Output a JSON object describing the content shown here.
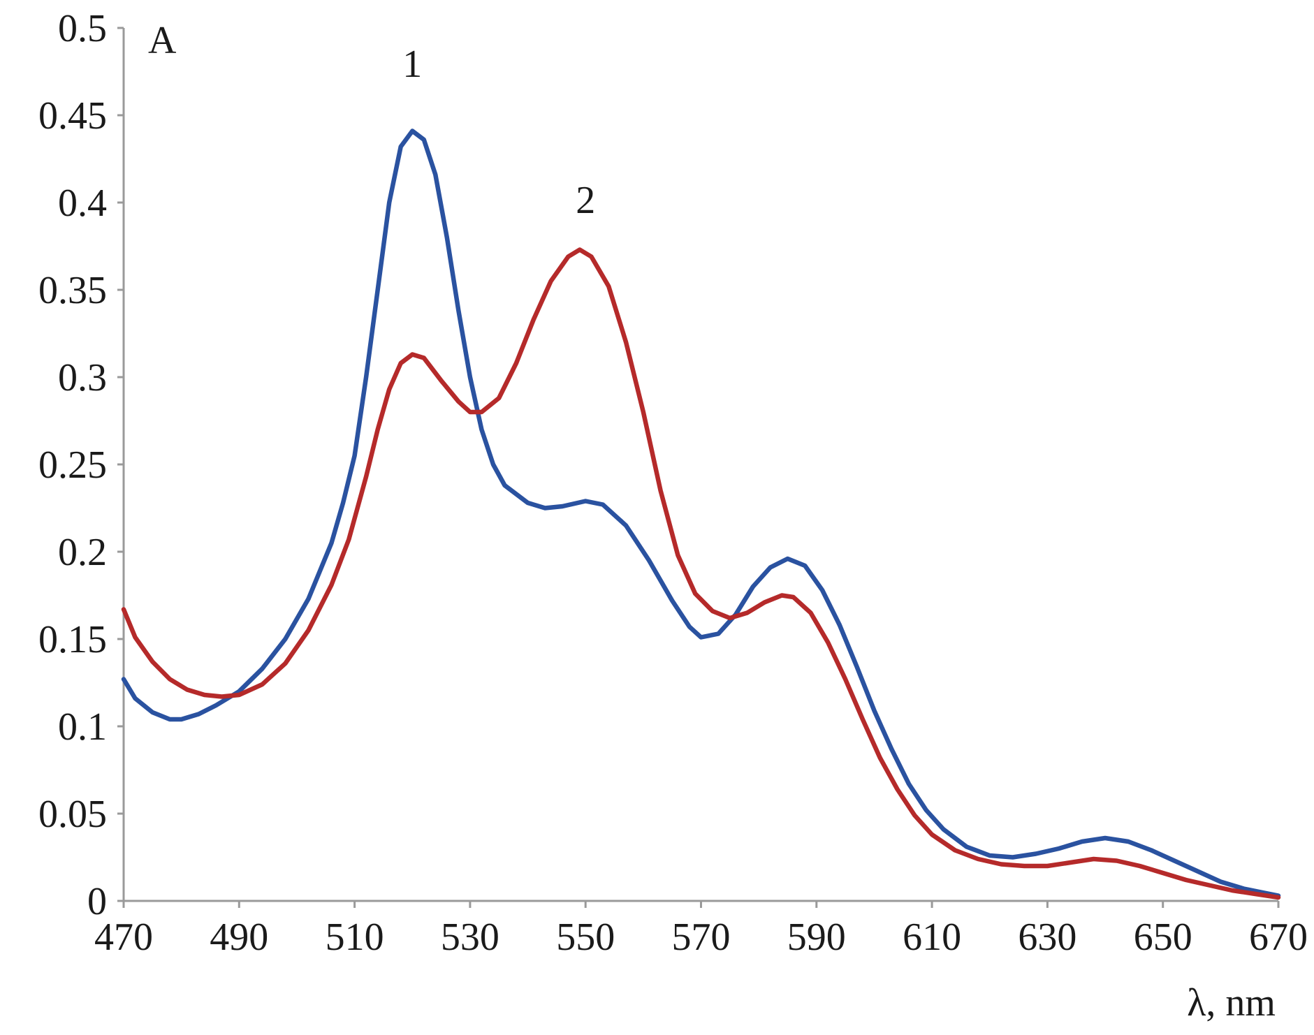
{
  "chart_data": {
    "type": "line",
    "ylabel": "A",
    "xlabel": "λ, nm",
    "xlim": [
      470,
      670
    ],
    "ylim": [
      0,
      0.5
    ],
    "x_ticks": [
      "470",
      "490",
      "510",
      "530",
      "550",
      "570",
      "590",
      "610",
      "630",
      "650",
      "670"
    ],
    "y_ticks": [
      "0",
      "0.05",
      "0.1",
      "0.15",
      "0.2",
      "0.25",
      "0.3",
      "0.35",
      "0.4",
      "0.45",
      "0.5"
    ],
    "grid": false,
    "legend": "none (series labelled directly on curves)",
    "series": [
      {
        "name": "1",
        "color": "#2a52a0",
        "label_at": {
          "x": 520,
          "y": 0.472
        },
        "points": [
          [
            470,
            0.127
          ],
          [
            472,
            0.116
          ],
          [
            475,
            0.108
          ],
          [
            478,
            0.104
          ],
          [
            480,
            0.104
          ],
          [
            483,
            0.107
          ],
          [
            486,
            0.112
          ],
          [
            490,
            0.12
          ],
          [
            494,
            0.133
          ],
          [
            498,
            0.15
          ],
          [
            502,
            0.173
          ],
          [
            506,
            0.205
          ],
          [
            508,
            0.228
          ],
          [
            510,
            0.255
          ],
          [
            512,
            0.3
          ],
          [
            514,
            0.35
          ],
          [
            516,
            0.4
          ],
          [
            518,
            0.432
          ],
          [
            520,
            0.441
          ],
          [
            522,
            0.436
          ],
          [
            524,
            0.416
          ],
          [
            526,
            0.38
          ],
          [
            528,
            0.338
          ],
          [
            530,
            0.3
          ],
          [
            532,
            0.27
          ],
          [
            534,
            0.25
          ],
          [
            536,
            0.238
          ],
          [
            540,
            0.228
          ],
          [
            543,
            0.225
          ],
          [
            546,
            0.226
          ],
          [
            550,
            0.229
          ],
          [
            553,
            0.227
          ],
          [
            557,
            0.215
          ],
          [
            561,
            0.195
          ],
          [
            565,
            0.172
          ],
          [
            568,
            0.157
          ],
          [
            570,
            0.151
          ],
          [
            573,
            0.153
          ],
          [
            576,
            0.164
          ],
          [
            579,
            0.18
          ],
          [
            582,
            0.191
          ],
          [
            585,
            0.196
          ],
          [
            588,
            0.192
          ],
          [
            591,
            0.178
          ],
          [
            594,
            0.158
          ],
          [
            597,
            0.134
          ],
          [
            600,
            0.109
          ],
          [
            603,
            0.087
          ],
          [
            606,
            0.067
          ],
          [
            609,
            0.052
          ],
          [
            612,
            0.041
          ],
          [
            616,
            0.031
          ],
          [
            620,
            0.026
          ],
          [
            624,
            0.025
          ],
          [
            628,
            0.027
          ],
          [
            632,
            0.03
          ],
          [
            636,
            0.034
          ],
          [
            640,
            0.036
          ],
          [
            644,
            0.034
          ],
          [
            648,
            0.029
          ],
          [
            652,
            0.023
          ],
          [
            656,
            0.017
          ],
          [
            660,
            0.011
          ],
          [
            664,
            0.007
          ],
          [
            667,
            0.005
          ],
          [
            670,
            0.003
          ]
        ]
      },
      {
        "name": "2",
        "color": "#b52a2a",
        "label_at": {
          "x": 550,
          "y": 0.394
        },
        "points": [
          [
            470,
            0.167
          ],
          [
            472,
            0.151
          ],
          [
            475,
            0.137
          ],
          [
            478,
            0.127
          ],
          [
            481,
            0.121
          ],
          [
            484,
            0.118
          ],
          [
            487,
            0.117
          ],
          [
            490,
            0.118
          ],
          [
            494,
            0.124
          ],
          [
            498,
            0.136
          ],
          [
            502,
            0.155
          ],
          [
            506,
            0.181
          ],
          [
            509,
            0.207
          ],
          [
            512,
            0.243
          ],
          [
            514,
            0.27
          ],
          [
            516,
            0.293
          ],
          [
            518,
            0.308
          ],
          [
            520,
            0.313
          ],
          [
            522,
            0.311
          ],
          [
            525,
            0.298
          ],
          [
            528,
            0.286
          ],
          [
            530,
            0.28
          ],
          [
            532,
            0.28
          ],
          [
            535,
            0.288
          ],
          [
            538,
            0.308
          ],
          [
            541,
            0.333
          ],
          [
            544,
            0.355
          ],
          [
            547,
            0.369
          ],
          [
            549,
            0.373
          ],
          [
            551,
            0.369
          ],
          [
            554,
            0.352
          ],
          [
            557,
            0.32
          ],
          [
            560,
            0.28
          ],
          [
            563,
            0.235
          ],
          [
            566,
            0.198
          ],
          [
            569,
            0.176
          ],
          [
            572,
            0.166
          ],
          [
            575,
            0.162
          ],
          [
            578,
            0.165
          ],
          [
            581,
            0.171
          ],
          [
            584,
            0.175
          ],
          [
            586,
            0.174
          ],
          [
            589,
            0.165
          ],
          [
            592,
            0.148
          ],
          [
            595,
            0.127
          ],
          [
            598,
            0.104
          ],
          [
            601,
            0.082
          ],
          [
            604,
            0.064
          ],
          [
            607,
            0.049
          ],
          [
            610,
            0.038
          ],
          [
            614,
            0.029
          ],
          [
            618,
            0.024
          ],
          [
            622,
            0.021
          ],
          [
            626,
            0.02
          ],
          [
            630,
            0.02
          ],
          [
            634,
            0.022
          ],
          [
            638,
            0.024
          ],
          [
            642,
            0.023
          ],
          [
            646,
            0.02
          ],
          [
            650,
            0.016
          ],
          [
            654,
            0.012
          ],
          [
            658,
            0.009
          ],
          [
            662,
            0.006
          ],
          [
            666,
            0.004
          ],
          [
            670,
            0.002
          ]
        ]
      }
    ]
  }
}
